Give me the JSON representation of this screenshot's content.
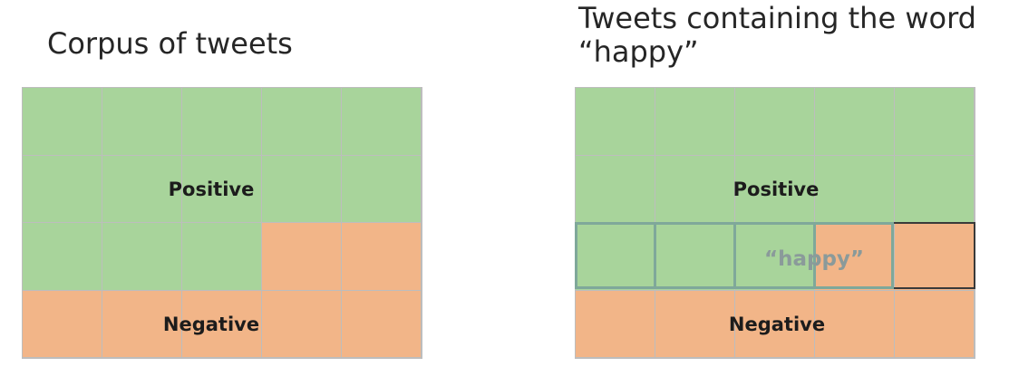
{
  "left_panel": {
    "title": "Corpus of tweets",
    "positive_label": "Positive",
    "negative_label": "Negative",
    "grid": [
      [
        "pos",
        "pos",
        "pos",
        "pos",
        "pos"
      ],
      [
        "pos",
        "pos",
        "pos",
        "pos",
        "pos"
      ],
      [
        "pos",
        "pos",
        "pos",
        "neg",
        "neg"
      ],
      [
        "neg",
        "neg",
        "neg",
        "neg",
        "neg"
      ]
    ]
  },
  "right_panel": {
    "title": "Tweets containing the word “happy”",
    "positive_label": "Positive",
    "negative_label": "Negative",
    "highlight_label": "“happy”",
    "grid": [
      [
        "pos",
        "pos",
        "pos",
        "pos",
        "pos"
      ],
      [
        "pos",
        "pos",
        "pos",
        "pos",
        "pos"
      ],
      [
        "pos",
        "pos",
        "pos",
        "neg",
        "neg"
      ],
      [
        "neg",
        "neg",
        "neg",
        "neg",
        "neg"
      ]
    ]
  },
  "colors": {
    "positive": "#a8d49b",
    "negative": "#f2b588",
    "highlight_outline": "#7fa89a",
    "highlight_text": "#8a9a9a"
  }
}
